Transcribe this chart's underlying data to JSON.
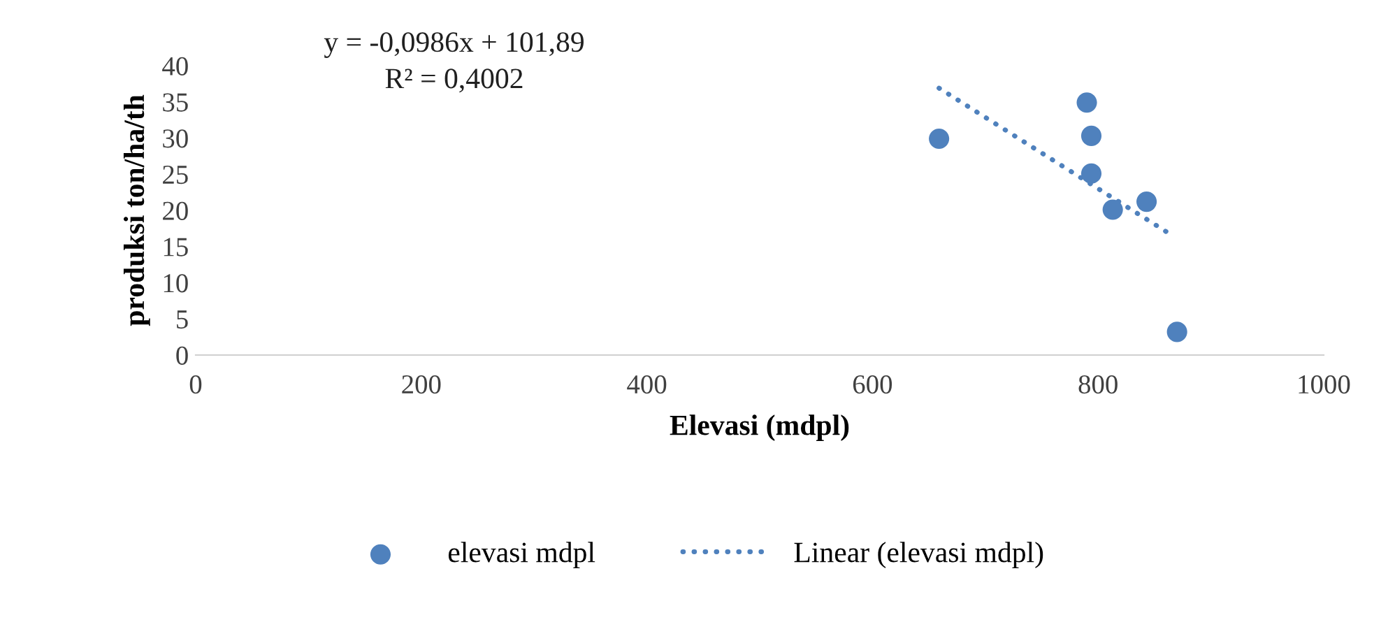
{
  "chart_data": {
    "type": "scatter",
    "xlabel": "Elevasi (mdpl)",
    "ylabel": "produksi ton/ha/th",
    "series": [
      {
        "name": "elevasi mdpl",
        "color": "#4f81bd",
        "marker": "circle",
        "x": [
          659,
          790,
          794,
          794,
          813,
          843,
          870
        ],
        "values": [
          29.9,
          34.9,
          30.3,
          25.1,
          20.1,
          21.2,
          3.2
        ]
      },
      {
        "name": "Linear (elevasi mdpl)",
        "type": "line",
        "color": "#4f81bd",
        "line_style": "dotted",
        "marker": "none",
        "x": [
          659,
          863
        ],
        "values": [
          36.9,
          16.8
        ]
      }
    ],
    "annotations": [
      "y = -0,0986x + 101,89",
      "R² = 0,4002"
    ],
    "xlim": [
      0,
      1000
    ],
    "xticks": [
      0,
      200,
      400,
      600,
      800,
      1000
    ],
    "ylim": [
      0,
      40
    ],
    "yticks": [
      0,
      5,
      10,
      15,
      20,
      25,
      30,
      35,
      40
    ],
    "grid": false,
    "legend": "bottom"
  }
}
